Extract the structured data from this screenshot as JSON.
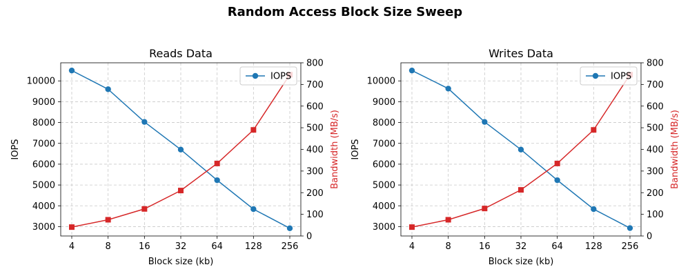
{
  "figure": {
    "suptitle": "Random Access Block Size Sweep"
  },
  "colors": {
    "iops": "#1f77b4",
    "bandwidth": "#d62728",
    "grid": "#c8c8c8",
    "axis": "#000000"
  },
  "chart_data": [
    {
      "type": "line",
      "title": "Reads Data",
      "xlabel": "Block size (kb)",
      "ylabel": "IOPS",
      "ylabel_right": "Bandwidth (MB/s)",
      "categories": [
        "4",
        "8",
        "16",
        "32",
        "64",
        "128",
        "256"
      ],
      "x_scale": "log2",
      "ylim": [
        2550,
        10870
      ],
      "yticks": [
        3000,
        4000,
        5000,
        6000,
        7000,
        8000,
        9000,
        10000
      ],
      "ylim_right": [
        0,
        800
      ],
      "yticks_right": [
        0,
        100,
        200,
        300,
        400,
        500,
        600,
        700,
        800
      ],
      "grid": true,
      "legend": {
        "position": "top-right",
        "entries": [
          "IOPS"
        ]
      },
      "series": [
        {
          "name": "IOPS",
          "axis": "left",
          "marker": "circle",
          "values": [
            10500,
            9600,
            8030,
            6700,
            5230,
            3840,
            2920
          ]
        },
        {
          "name": "Bandwidth (MB/s)",
          "axis": "right",
          "marker": "square",
          "values": [
            41,
            75,
            125,
            210,
            335,
            490,
            745
          ]
        }
      ]
    },
    {
      "type": "line",
      "title": "Writes Data",
      "xlabel": "Block size (kb)",
      "ylabel": "IOPS",
      "ylabel_right": "Bandwidth (MB/s)",
      "categories": [
        "4",
        "8",
        "16",
        "32",
        "64",
        "128",
        "256"
      ],
      "x_scale": "log2",
      "ylim": [
        2550,
        10870
      ],
      "yticks": [
        3000,
        4000,
        5000,
        6000,
        7000,
        8000,
        9000,
        10000
      ],
      "ylim_right": [
        0,
        800
      ],
      "yticks_right": [
        0,
        100,
        200,
        300,
        400,
        500,
        600,
        700,
        800
      ],
      "grid": true,
      "legend": {
        "position": "top-right",
        "entries": [
          "IOPS"
        ]
      },
      "series": [
        {
          "name": "IOPS",
          "axis": "left",
          "marker": "circle",
          "values": [
            10500,
            9630,
            8030,
            6700,
            5230,
            3840,
            2930
          ]
        },
        {
          "name": "Bandwidth (MB/s)",
          "axis": "right",
          "marker": "square",
          "values": [
            41,
            75,
            127,
            213,
            335,
            490,
            745
          ]
        }
      ]
    }
  ]
}
